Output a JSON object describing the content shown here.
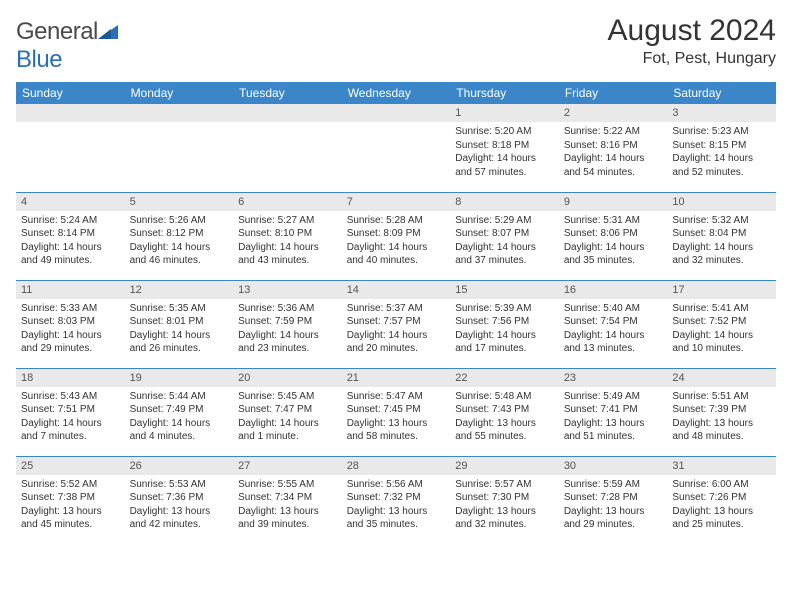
{
  "logo": {
    "t1": "General",
    "t2": "Blue"
  },
  "title": "August 2024",
  "location": "Fot, Pest, Hungary",
  "colors": {
    "header_bg": "#3b86c8",
    "header_fg": "#ffffff",
    "daynum_bg": "#e9e9e9",
    "row_border": "#3b86c8",
    "text": "#333333",
    "logo_gray": "#4a4a4a",
    "logo_blue": "#2b6fb5"
  },
  "weekdays": [
    "Sunday",
    "Monday",
    "Tuesday",
    "Wednesday",
    "Thursday",
    "Friday",
    "Saturday"
  ],
  "weeks": [
    [
      {
        "n": "",
        "empty": true
      },
      {
        "n": "",
        "empty": true
      },
      {
        "n": "",
        "empty": true
      },
      {
        "n": "",
        "empty": true
      },
      {
        "n": "1",
        "sr": "Sunrise: 5:20 AM",
        "ss": "Sunset: 8:18 PM",
        "dl": "Daylight: 14 hours and 57 minutes."
      },
      {
        "n": "2",
        "sr": "Sunrise: 5:22 AM",
        "ss": "Sunset: 8:16 PM",
        "dl": "Daylight: 14 hours and 54 minutes."
      },
      {
        "n": "3",
        "sr": "Sunrise: 5:23 AM",
        "ss": "Sunset: 8:15 PM",
        "dl": "Daylight: 14 hours and 52 minutes."
      }
    ],
    [
      {
        "n": "4",
        "sr": "Sunrise: 5:24 AM",
        "ss": "Sunset: 8:14 PM",
        "dl": "Daylight: 14 hours and 49 minutes."
      },
      {
        "n": "5",
        "sr": "Sunrise: 5:26 AM",
        "ss": "Sunset: 8:12 PM",
        "dl": "Daylight: 14 hours and 46 minutes."
      },
      {
        "n": "6",
        "sr": "Sunrise: 5:27 AM",
        "ss": "Sunset: 8:10 PM",
        "dl": "Daylight: 14 hours and 43 minutes."
      },
      {
        "n": "7",
        "sr": "Sunrise: 5:28 AM",
        "ss": "Sunset: 8:09 PM",
        "dl": "Daylight: 14 hours and 40 minutes."
      },
      {
        "n": "8",
        "sr": "Sunrise: 5:29 AM",
        "ss": "Sunset: 8:07 PM",
        "dl": "Daylight: 14 hours and 37 minutes."
      },
      {
        "n": "9",
        "sr": "Sunrise: 5:31 AM",
        "ss": "Sunset: 8:06 PM",
        "dl": "Daylight: 14 hours and 35 minutes."
      },
      {
        "n": "10",
        "sr": "Sunrise: 5:32 AM",
        "ss": "Sunset: 8:04 PM",
        "dl": "Daylight: 14 hours and 32 minutes."
      }
    ],
    [
      {
        "n": "11",
        "sr": "Sunrise: 5:33 AM",
        "ss": "Sunset: 8:03 PM",
        "dl": "Daylight: 14 hours and 29 minutes."
      },
      {
        "n": "12",
        "sr": "Sunrise: 5:35 AM",
        "ss": "Sunset: 8:01 PM",
        "dl": "Daylight: 14 hours and 26 minutes."
      },
      {
        "n": "13",
        "sr": "Sunrise: 5:36 AM",
        "ss": "Sunset: 7:59 PM",
        "dl": "Daylight: 14 hours and 23 minutes."
      },
      {
        "n": "14",
        "sr": "Sunrise: 5:37 AM",
        "ss": "Sunset: 7:57 PM",
        "dl": "Daylight: 14 hours and 20 minutes."
      },
      {
        "n": "15",
        "sr": "Sunrise: 5:39 AM",
        "ss": "Sunset: 7:56 PM",
        "dl": "Daylight: 14 hours and 17 minutes."
      },
      {
        "n": "16",
        "sr": "Sunrise: 5:40 AM",
        "ss": "Sunset: 7:54 PM",
        "dl": "Daylight: 14 hours and 13 minutes."
      },
      {
        "n": "17",
        "sr": "Sunrise: 5:41 AM",
        "ss": "Sunset: 7:52 PM",
        "dl": "Daylight: 14 hours and 10 minutes."
      }
    ],
    [
      {
        "n": "18",
        "sr": "Sunrise: 5:43 AM",
        "ss": "Sunset: 7:51 PM",
        "dl": "Daylight: 14 hours and 7 minutes."
      },
      {
        "n": "19",
        "sr": "Sunrise: 5:44 AM",
        "ss": "Sunset: 7:49 PM",
        "dl": "Daylight: 14 hours and 4 minutes."
      },
      {
        "n": "20",
        "sr": "Sunrise: 5:45 AM",
        "ss": "Sunset: 7:47 PM",
        "dl": "Daylight: 14 hours and 1 minute."
      },
      {
        "n": "21",
        "sr": "Sunrise: 5:47 AM",
        "ss": "Sunset: 7:45 PM",
        "dl": "Daylight: 13 hours and 58 minutes."
      },
      {
        "n": "22",
        "sr": "Sunrise: 5:48 AM",
        "ss": "Sunset: 7:43 PM",
        "dl": "Daylight: 13 hours and 55 minutes."
      },
      {
        "n": "23",
        "sr": "Sunrise: 5:49 AM",
        "ss": "Sunset: 7:41 PM",
        "dl": "Daylight: 13 hours and 51 minutes."
      },
      {
        "n": "24",
        "sr": "Sunrise: 5:51 AM",
        "ss": "Sunset: 7:39 PM",
        "dl": "Daylight: 13 hours and 48 minutes."
      }
    ],
    [
      {
        "n": "25",
        "sr": "Sunrise: 5:52 AM",
        "ss": "Sunset: 7:38 PM",
        "dl": "Daylight: 13 hours and 45 minutes."
      },
      {
        "n": "26",
        "sr": "Sunrise: 5:53 AM",
        "ss": "Sunset: 7:36 PM",
        "dl": "Daylight: 13 hours and 42 minutes."
      },
      {
        "n": "27",
        "sr": "Sunrise: 5:55 AM",
        "ss": "Sunset: 7:34 PM",
        "dl": "Daylight: 13 hours and 39 minutes."
      },
      {
        "n": "28",
        "sr": "Sunrise: 5:56 AM",
        "ss": "Sunset: 7:32 PM",
        "dl": "Daylight: 13 hours and 35 minutes."
      },
      {
        "n": "29",
        "sr": "Sunrise: 5:57 AM",
        "ss": "Sunset: 7:30 PM",
        "dl": "Daylight: 13 hours and 32 minutes."
      },
      {
        "n": "30",
        "sr": "Sunrise: 5:59 AM",
        "ss": "Sunset: 7:28 PM",
        "dl": "Daylight: 13 hours and 29 minutes."
      },
      {
        "n": "31",
        "sr": "Sunrise: 6:00 AM",
        "ss": "Sunset: 7:26 PM",
        "dl": "Daylight: 13 hours and 25 minutes."
      }
    ]
  ]
}
